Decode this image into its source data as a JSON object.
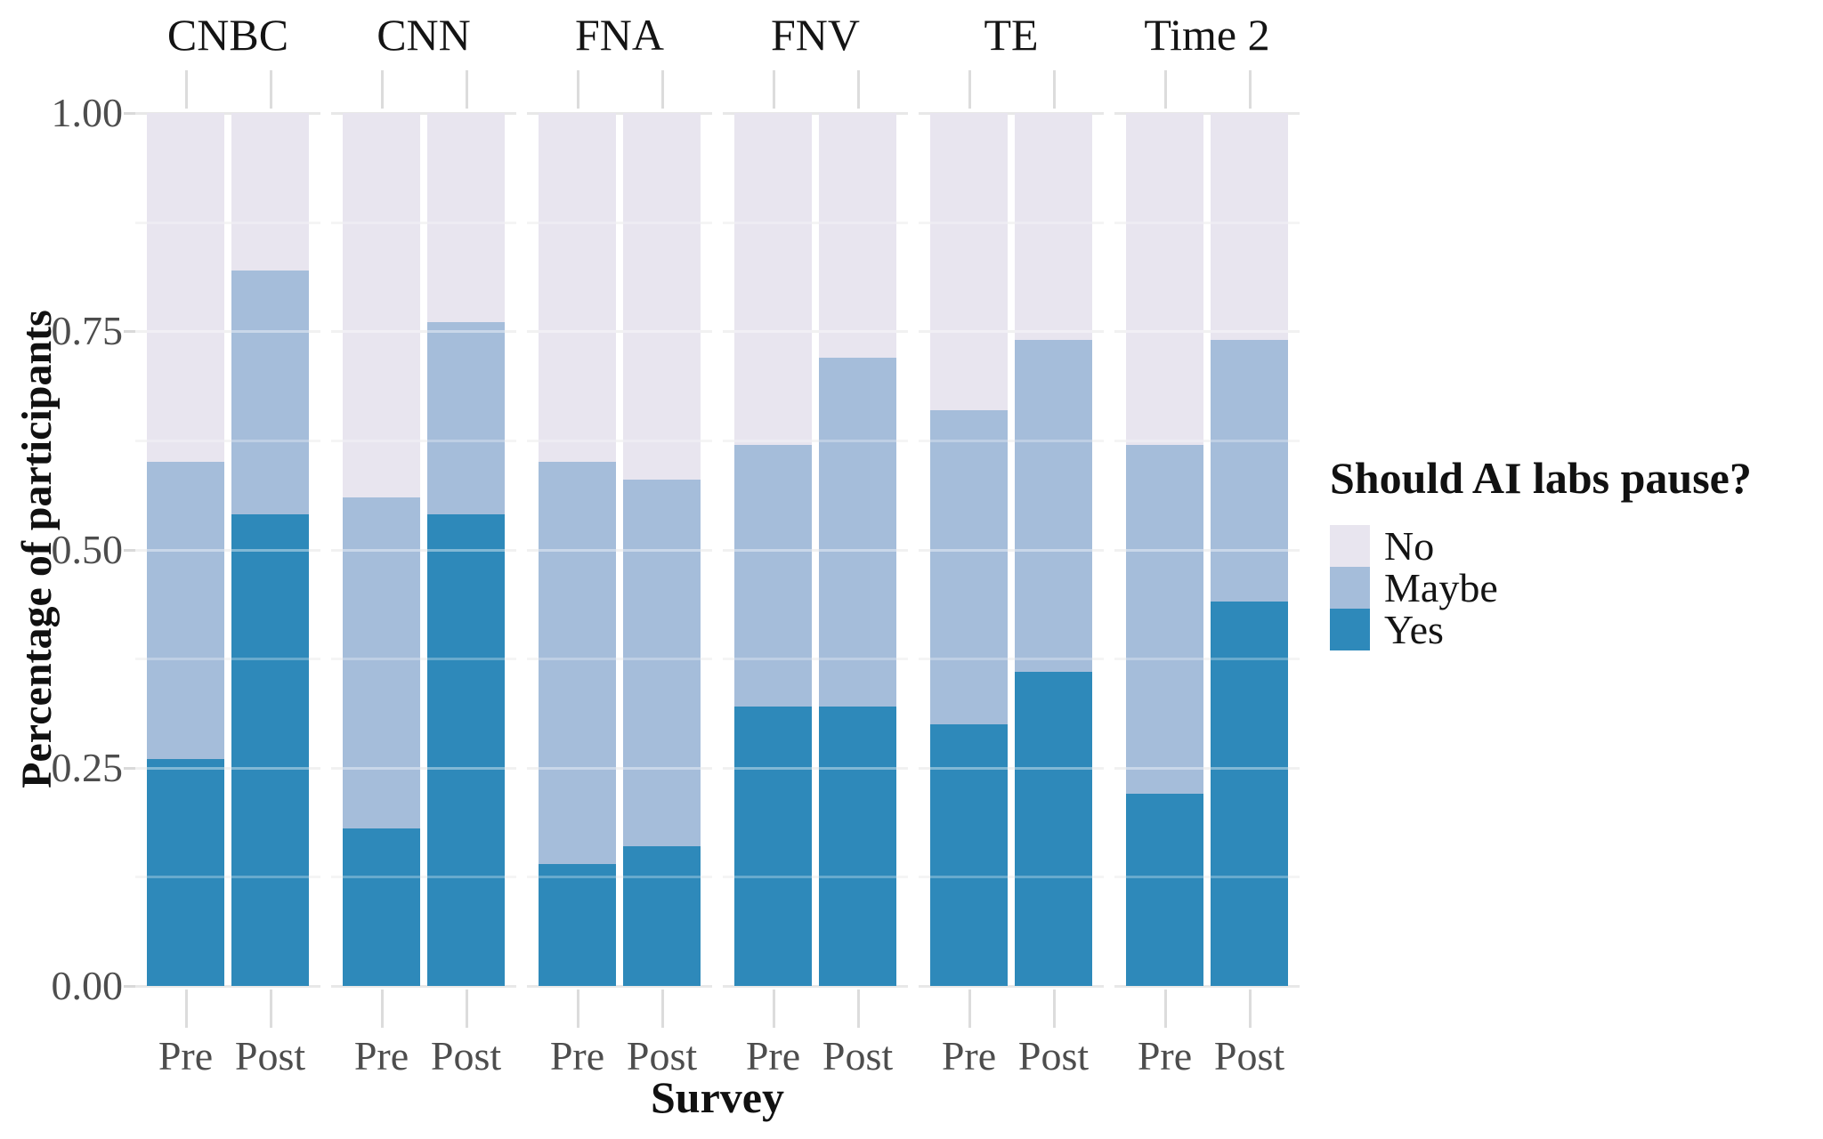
{
  "chart_data": {
    "type": "bar",
    "stacked": true,
    "orientation": "vertical",
    "xlabel": "Survey",
    "ylabel": "Percentage of participants",
    "ylim": [
      0,
      1
    ],
    "yticks": [
      0,
      0.25,
      0.5,
      0.75,
      1.0
    ],
    "ytick_labels": [
      "0.00",
      "0.25",
      "0.50",
      "0.75",
      "1.00"
    ],
    "minor_yticks": [
      0.125,
      0.375,
      0.625,
      0.875
    ],
    "grid": "on",
    "categories": [
      "Pre",
      "Post"
    ],
    "stack_order_bottom_to_top": [
      "Yes",
      "Maybe",
      "No"
    ],
    "facets": [
      {
        "label": "CNBC",
        "bars": [
          {
            "category": "Pre",
            "Yes": 0.26,
            "Maybe": 0.34,
            "No": 0.4
          },
          {
            "category": "Post",
            "Yes": 0.54,
            "Maybe": 0.28,
            "No": 0.18
          }
        ]
      },
      {
        "label": "CNN",
        "bars": [
          {
            "category": "Pre",
            "Yes": 0.18,
            "Maybe": 0.38,
            "No": 0.44
          },
          {
            "category": "Post",
            "Yes": 0.54,
            "Maybe": 0.22,
            "No": 0.24
          }
        ]
      },
      {
        "label": "FNA",
        "bars": [
          {
            "category": "Pre",
            "Yes": 0.14,
            "Maybe": 0.46,
            "No": 0.4
          },
          {
            "category": "Post",
            "Yes": 0.16,
            "Maybe": 0.42,
            "No": 0.42
          }
        ]
      },
      {
        "label": "FNV",
        "bars": [
          {
            "category": "Pre",
            "Yes": 0.32,
            "Maybe": 0.3,
            "No": 0.38
          },
          {
            "category": "Post",
            "Yes": 0.32,
            "Maybe": 0.4,
            "No": 0.28
          }
        ]
      },
      {
        "label": "TE",
        "bars": [
          {
            "category": "Pre",
            "Yes": 0.3,
            "Maybe": 0.36,
            "No": 0.34
          },
          {
            "category": "Post",
            "Yes": 0.36,
            "Maybe": 0.38,
            "No": 0.26
          }
        ]
      },
      {
        "label": "Time 2",
        "bars": [
          {
            "category": "Pre",
            "Yes": 0.22,
            "Maybe": 0.4,
            "No": 0.38
          },
          {
            "category": "Post",
            "Yes": 0.44,
            "Maybe": 0.3,
            "No": 0.26
          }
        ]
      }
    ],
    "legend": {
      "title": "Should AI labs pause?",
      "position": "right",
      "entries": [
        {
          "label": "No",
          "color": "#e8e5ef"
        },
        {
          "label": "Maybe",
          "color": "#a5bdda"
        },
        {
          "label": "Yes",
          "color": "#2e89ba"
        }
      ]
    }
  }
}
